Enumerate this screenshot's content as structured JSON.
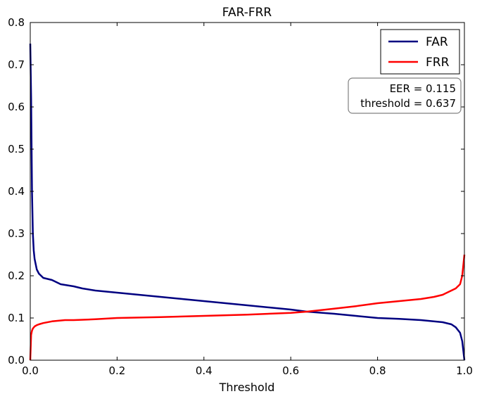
{
  "chart_data": {
    "type": "line",
    "title": "FAR-FRR",
    "xlabel": "Threshold",
    "ylabel": "",
    "xlim": [
      0.0,
      1.0
    ],
    "ylim": [
      0.0,
      0.8
    ],
    "xticks": [
      "0.0",
      "0.2",
      "0.4",
      "0.6",
      "0.8",
      "1.0"
    ],
    "yticks": [
      "0.0",
      "0.1",
      "0.2",
      "0.3",
      "0.4",
      "0.5",
      "0.6",
      "0.7",
      "0.8"
    ],
    "grid": false,
    "legend_position": "top-right",
    "annotation": {
      "line1": "EER = 0.115",
      "line2": "threshold = 0.637"
    },
    "series": [
      {
        "name": "FAR",
        "color": "#000080",
        "x": [
          0.0,
          0.002,
          0.004,
          0.006,
          0.008,
          0.01,
          0.015,
          0.02,
          0.03,
          0.05,
          0.07,
          0.1,
          0.12,
          0.15,
          0.2,
          0.25,
          0.3,
          0.35,
          0.4,
          0.45,
          0.5,
          0.55,
          0.6,
          0.637,
          0.7,
          0.75,
          0.8,
          0.85,
          0.9,
          0.95,
          0.97,
          0.98,
          0.99,
          0.995,
          1.0
        ],
        "values": [
          0.75,
          0.62,
          0.4,
          0.3,
          0.26,
          0.24,
          0.215,
          0.205,
          0.195,
          0.19,
          0.18,
          0.175,
          0.17,
          0.165,
          0.16,
          0.155,
          0.15,
          0.145,
          0.14,
          0.135,
          0.13,
          0.125,
          0.12,
          0.115,
          0.11,
          0.105,
          0.1,
          0.098,
          0.095,
          0.09,
          0.085,
          0.078,
          0.065,
          0.045,
          0.0
        ]
      },
      {
        "name": "FRR",
        "color": "#ff0000",
        "x": [
          0.0,
          0.002,
          0.004,
          0.006,
          0.01,
          0.015,
          0.02,
          0.03,
          0.05,
          0.08,
          0.1,
          0.15,
          0.2,
          0.3,
          0.4,
          0.5,
          0.6,
          0.637,
          0.7,
          0.75,
          0.8,
          0.85,
          0.9,
          0.93,
          0.95,
          0.97,
          0.98,
          0.99,
          0.995,
          0.998,
          1.0
        ],
        "values": [
          0.0,
          0.06,
          0.07,
          0.075,
          0.08,
          0.083,
          0.085,
          0.088,
          0.092,
          0.095,
          0.095,
          0.097,
          0.1,
          0.102,
          0.105,
          0.108,
          0.112,
          0.115,
          0.122,
          0.128,
          0.135,
          0.14,
          0.145,
          0.15,
          0.155,
          0.165,
          0.17,
          0.18,
          0.2,
          0.23,
          0.25
        ]
      }
    ]
  }
}
